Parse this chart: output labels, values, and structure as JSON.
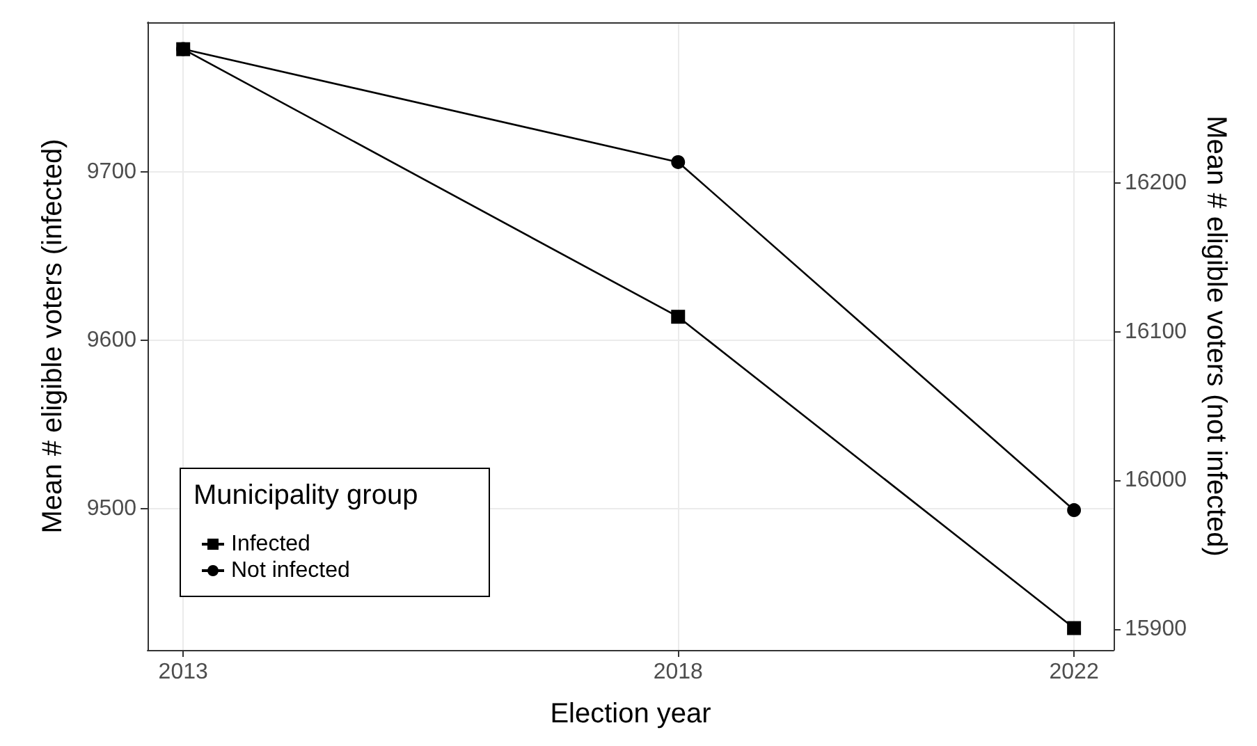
{
  "chart_data": {
    "type": "line",
    "xlabel": "Election year",
    "ylabel": "Mean # eligible voters (infected)",
    "y2label": "Mean # eligible voters (not infected)",
    "legend_title": "Municipality group",
    "x": [
      2013,
      2018,
      2022
    ],
    "series": [
      {
        "name": "Infected",
        "color": "#000000",
        "marker": "square",
        "values": [
          9773,
          9614,
          9429
        ]
      },
      {
        "name": "Not infected",
        "color": "#000000",
        "marker": "circle",
        "axis": "y2",
        "values": [
          16290,
          16214,
          15980
        ]
      }
    ],
    "xlim": [
      2012.64,
      2022.4
    ],
    "xticks": [
      2013,
      2018,
      2022
    ],
    "ylim": [
      9416,
      9789
    ],
    "yticks": [
      9500,
      9600,
      9700
    ],
    "y2lim": [
      15886,
      16308
    ],
    "y2ticks": [
      15900,
      16000,
      16100,
      16200
    ],
    "grid": true,
    "legend": "bottom left",
    "line_style": "solid"
  }
}
